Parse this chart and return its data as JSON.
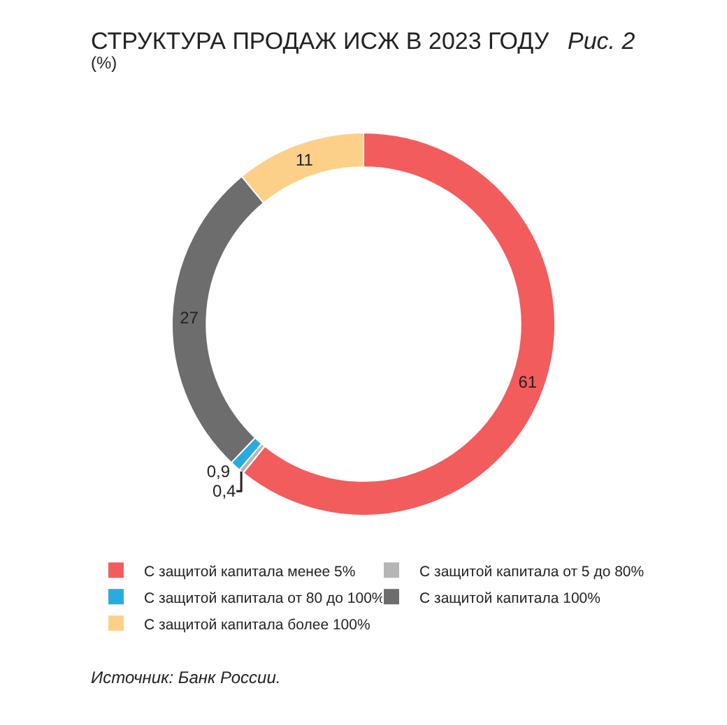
{
  "chart_data": {
    "type": "donut",
    "title": "СТРУКТУРА ПРОДАЖ ИСЖ В 2023 ГОДУ",
    "subtitle": "(%)",
    "annotations": [
      "Рис. 2",
      "Источник: Банк России."
    ],
    "categories": [
      "С защитой капитала менее 5%",
      "С защитой капитала от 5 до 80%",
      "С защитой капитала от 80 до 100%",
      "С защитой капитала 100%",
      "С защитой капитала более 100%"
    ],
    "values": [
      61,
      0.4,
      0.9,
      27,
      11
    ],
    "value_labels": [
      "61",
      "0,4",
      "0,9",
      "27",
      "11"
    ],
    "colors": [
      "#f25c5c",
      "#b5b5b5",
      "#29abe2",
      "#6d6d6d",
      "#fdd08a"
    ],
    "legend": "bottom"
  }
}
